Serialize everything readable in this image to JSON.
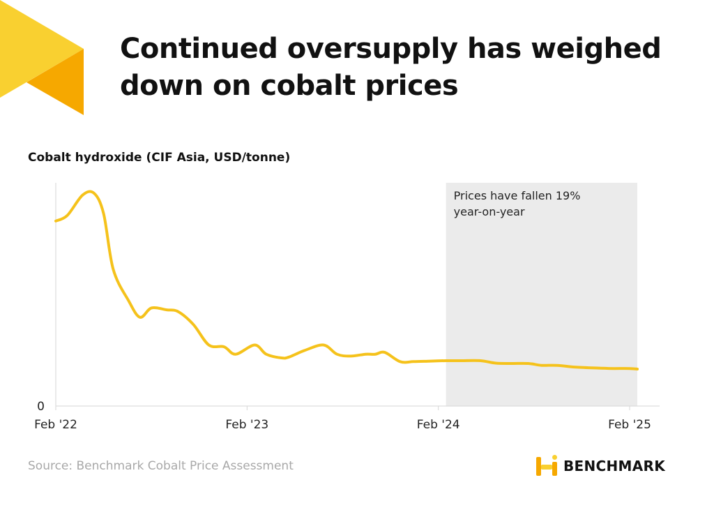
{
  "header": {
    "title": "Continued oversupply has weighed down on cobalt prices"
  },
  "footer": {
    "source": "Source: Benchmark Cobalt Price Assessment",
    "brand": "BENCHMARK"
  },
  "colors": {
    "line": "#F5C21B",
    "shade": "#EBEBEB",
    "deco_light": "#F9D030",
    "deco_dark": "#F6A800"
  },
  "icons": {
    "logo_mark": "benchmark-logo-icon",
    "corner_art": "triangle-decoration"
  },
  "chart_data": {
    "type": "line",
    "title": "Cobalt hydroxide (CIF Asia, USD/tonne)",
    "xlabel": "",
    "ylabel": "",
    "x_ticks": [
      "Feb '22",
      "Feb '23",
      "Feb '24",
      "Feb '25"
    ],
    "y_ticks": [
      "0"
    ],
    "x_range": [
      2022.08,
      2025.12
    ],
    "y_range_relative": [
      0,
      1.15
    ],
    "grid": false,
    "legend": "none",
    "highlight": {
      "start": 2024.12,
      "end": 2025.12,
      "label_lines": [
        "Prices have fallen 19%",
        "year-on-year"
      ]
    },
    "series": [
      {
        "x": [
          2022.08,
          2022.14,
          2022.22,
          2022.28,
          2022.33,
          2022.38,
          2022.46,
          2022.52,
          2022.58,
          2022.66,
          2022.72,
          2022.8,
          2022.88,
          2022.96,
          2023.02,
          2023.12,
          2023.18,
          2023.26,
          2023.3,
          2023.38,
          2023.48,
          2023.55,
          2023.62,
          2023.7,
          2023.75,
          2023.8,
          2023.88,
          2023.95,
          2024.04,
          2024.12,
          2024.2,
          2024.3,
          2024.38,
          2024.46,
          2024.55,
          2024.62,
          2024.7,
          2024.8,
          2024.92,
          2025.0,
          2025.08,
          2025.12
        ],
        "y": [
          1.0,
          1.03,
          1.14,
          1.15,
          1.04,
          0.74,
          0.57,
          0.48,
          0.53,
          0.52,
          0.51,
          0.44,
          0.33,
          0.32,
          0.28,
          0.33,
          0.28,
          0.26,
          0.265,
          0.3,
          0.33,
          0.28,
          0.27,
          0.28,
          0.28,
          0.29,
          0.24,
          0.24,
          0.243,
          0.245,
          0.245,
          0.245,
          0.232,
          0.23,
          0.23,
          0.22,
          0.22,
          0.21,
          0.205,
          0.203,
          0.203,
          0.2
        ]
      }
    ]
  }
}
